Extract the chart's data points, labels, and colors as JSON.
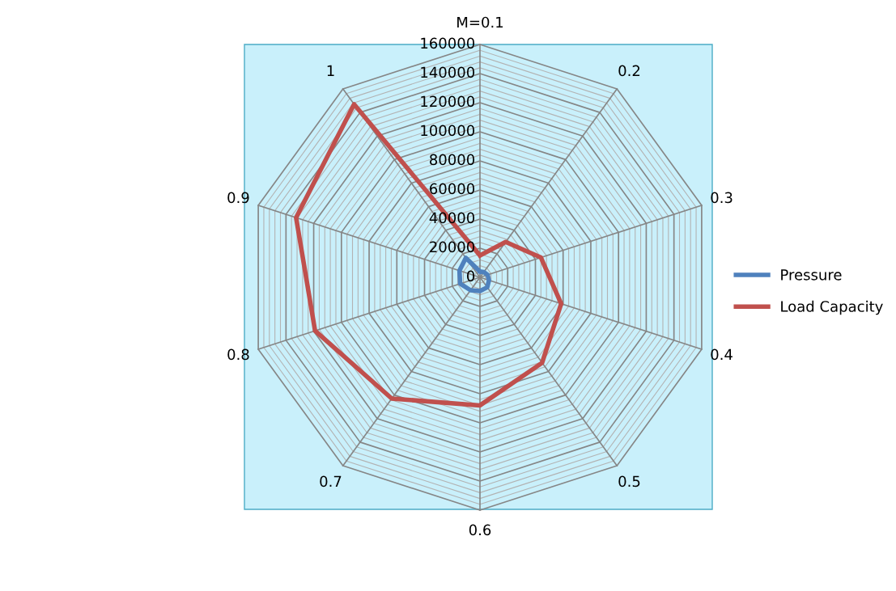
{
  "chart_data": {
    "type": "radar",
    "categories": [
      "M=0.1",
      "0.2",
      "0.3",
      "0.4",
      "0.5",
      "0.6",
      "0.7",
      "0.8",
      "0.9",
      "1"
    ],
    "series": [
      {
        "name": "Pressure",
        "color": "#4f81bd",
        "values": [
          4000,
          4500,
          5500,
          6500,
          8500,
          9400,
          11000,
          14300,
          14800,
          16500
        ]
      },
      {
        "name": "Load Capacity",
        "color": "#c0504d",
        "values": [
          15000,
          30000,
          44000,
          58600,
          72600,
          88000,
          103000,
          119000,
          132700,
          147000
        ]
      }
    ],
    "ylim": [
      0,
      160000
    ],
    "yticks": [
      0,
      20000,
      40000,
      60000,
      80000,
      100000,
      120000,
      140000,
      160000
    ],
    "grid": true,
    "legend": "right",
    "marker": "none",
    "line_style": "solid"
  }
}
